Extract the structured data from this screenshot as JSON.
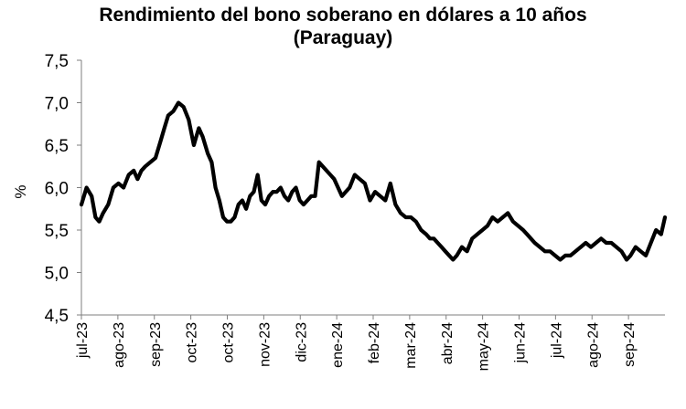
{
  "chart_data": {
    "type": "line",
    "title_line1": "Rendimiento del bono soberano en dólares a 10 años",
    "title_line2": "(Paraguay)",
    "ylabel": "%",
    "ylim": [
      4.5,
      7.5
    ],
    "yticks": [
      "4,5",
      "5,0",
      "5,5",
      "6,0",
      "6,5",
      "7,0",
      "7,5"
    ],
    "yticks_values": [
      4.5,
      5.0,
      5.5,
      6.0,
      6.5,
      7.0,
      7.5
    ],
    "x_range": [
      "2023-07-01",
      "2024-09-30"
    ],
    "xticks": [
      "jul-23",
      "ago-23",
      "sep-23",
      "oct-23",
      "oct-23",
      "nov-23",
      "dic-23",
      "ene-24",
      "feb-24",
      "mar-24",
      "abr-24",
      "may-24",
      "jun-24",
      "jul-24",
      "ago-24",
      "sep-24"
    ],
    "grid": false,
    "line_color": "#000000",
    "series": [
      {
        "x": [
          "2023-07-01",
          "2023-07-05",
          "2023-07-09",
          "2023-07-12",
          "2023-07-15",
          "2023-07-18",
          "2023-07-22",
          "2023-07-26",
          "2023-07-30",
          "2023-08-03",
          "2023-08-07",
          "2023-08-11",
          "2023-08-14",
          "2023-08-17",
          "2023-08-20",
          "2023-08-24",
          "2023-08-28",
          "2023-09-01",
          "2023-09-04",
          "2023-09-07",
          "2023-09-11",
          "2023-09-15",
          "2023-09-19",
          "2023-09-23",
          "2023-09-27",
          "2023-09-29",
          "2023-10-01",
          "2023-10-04",
          "2023-10-06",
          "2023-10-08",
          "2023-10-11",
          "2023-10-14",
          "2023-10-17",
          "2023-10-20",
          "2023-10-23",
          "2023-10-26",
          "2023-10-29",
          "2023-11-01",
          "2023-11-04",
          "2023-11-07",
          "2023-11-10",
          "2023-11-13",
          "2023-11-16",
          "2023-11-19",
          "2023-11-22",
          "2023-11-25",
          "2023-11-28",
          "2023-12-01",
          "2023-12-04",
          "2023-12-07",
          "2023-12-10",
          "2023-12-13",
          "2023-12-16",
          "2023-12-19",
          "2023-12-22",
          "2023-12-25",
          "2023-12-28",
          "2023-12-31",
          "2024-01-03",
          "2024-01-06",
          "2024-01-09",
          "2024-01-12",
          "2024-01-15",
          "2024-01-18",
          "2024-01-21",
          "2024-01-24",
          "2024-01-27",
          "2024-01-31",
          "2024-02-04",
          "2024-02-08",
          "2024-02-12",
          "2024-02-16",
          "2024-02-20",
          "2024-02-24",
          "2024-02-28",
          "2024-03-03",
          "2024-03-07",
          "2024-03-11",
          "2024-03-15",
          "2024-03-19",
          "2024-03-23",
          "2024-03-27",
          "2024-03-30",
          "2024-04-02",
          "2024-04-05",
          "2024-04-08",
          "2024-04-11",
          "2024-04-14",
          "2024-04-17",
          "2024-04-20",
          "2024-04-24",
          "2024-04-28",
          "2024-05-02",
          "2024-05-06",
          "2024-05-10",
          "2024-05-14",
          "2024-05-18",
          "2024-05-22",
          "2024-05-26",
          "2024-05-30",
          "2024-06-03",
          "2024-06-07",
          "2024-06-11",
          "2024-06-14",
          "2024-06-17",
          "2024-06-20",
          "2024-06-24",
          "2024-06-28",
          "2024-07-02",
          "2024-07-06",
          "2024-07-10",
          "2024-07-14",
          "2024-07-18",
          "2024-07-22",
          "2024-07-26",
          "2024-07-30",
          "2024-08-03",
          "2024-08-07",
          "2024-08-11",
          "2024-08-15",
          "2024-08-19",
          "2024-08-23",
          "2024-08-27",
          "2024-08-31",
          "2024-09-03",
          "2024-09-07",
          "2024-09-11",
          "2024-09-15",
          "2024-09-19",
          "2024-09-23",
          "2024-09-27",
          "2024-09-30"
        ],
        "y": [
          5.8,
          6.0,
          5.9,
          5.65,
          5.6,
          5.7,
          5.8,
          6.0,
          6.05,
          6.0,
          6.15,
          6.2,
          6.1,
          6.2,
          6.25,
          6.3,
          6.35,
          6.55,
          6.7,
          6.85,
          6.9,
          7.0,
          6.95,
          6.8,
          6.5,
          6.6,
          6.7,
          6.6,
          6.5,
          6.4,
          6.3,
          6.0,
          5.85,
          5.65,
          5.6,
          5.6,
          5.65,
          5.8,
          5.85,
          5.75,
          5.9,
          5.95,
          6.15,
          5.85,
          5.8,
          5.9,
          5.95,
          5.95,
          6.0,
          5.9,
          5.85,
          5.95,
          6.0,
          5.85,
          5.8,
          5.85,
          5.9,
          5.9,
          6.3,
          6.25,
          6.2,
          6.15,
          6.1,
          6.0,
          5.9,
          5.95,
          6.0,
          6.15,
          6.1,
          6.05,
          5.85,
          5.95,
          5.9,
          5.85,
          6.05,
          5.8,
          5.7,
          5.65,
          5.65,
          5.6,
          5.5,
          5.45,
          5.4,
          5.4,
          5.35,
          5.3,
          5.25,
          5.2,
          5.15,
          5.2,
          5.3,
          5.25,
          5.4,
          5.45,
          5.5,
          5.55,
          5.65,
          5.6,
          5.65,
          5.7,
          5.6,
          5.55,
          5.5,
          5.45,
          5.4,
          5.35,
          5.3,
          5.25,
          5.25,
          5.2,
          5.15,
          5.2,
          5.2,
          5.25,
          5.3,
          5.35,
          5.3,
          5.35,
          5.4,
          5.35,
          5.35,
          5.3,
          5.25,
          5.15,
          5.2,
          5.3,
          5.25,
          5.2,
          5.35,
          5.5,
          5.45,
          5.65
        ]
      }
    ]
  }
}
